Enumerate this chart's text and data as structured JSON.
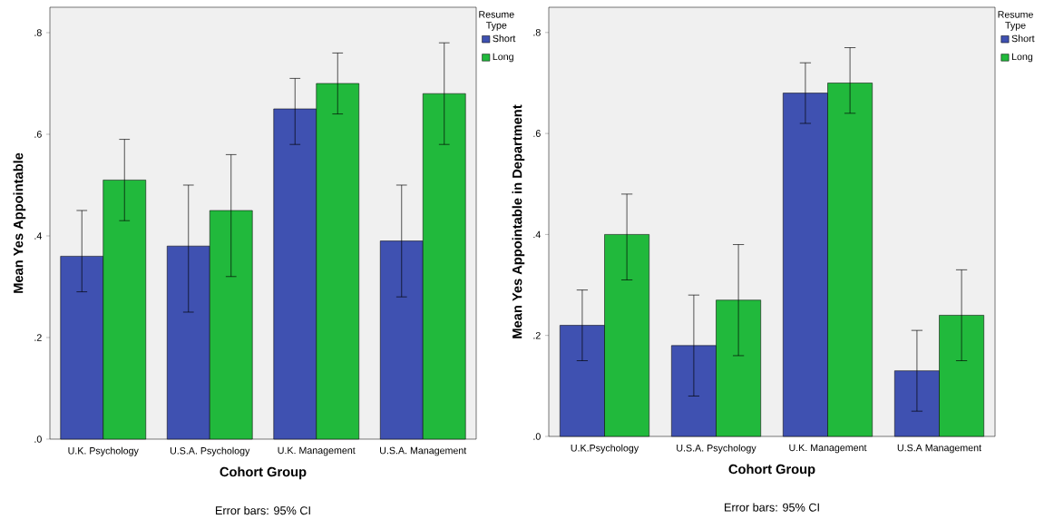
{
  "chart_data": [
    {
      "type": "bar",
      "xlabel": "Cohort Group",
      "ylabel": "Mean Yes Appointable",
      "legend_title": "Resume Type",
      "legend": "top right",
      "categories": [
        "U.K. Psychology",
        "U.S.A. Psychology",
        "U.K. Management",
        "U.S.A. Management"
      ],
      "series": [
        {
          "name": "Short",
          "color": "#3f51b1",
          "values": [
            0.36,
            0.38,
            0.65,
            0.39
          ],
          "errors": [
            [
              0.29,
              0.45
            ],
            [
              0.25,
              0.5
            ],
            [
              0.58,
              0.71
            ],
            [
              0.28,
              0.5
            ]
          ]
        },
        {
          "name": "Long",
          "color": "#21b93c",
          "values": [
            0.51,
            0.45,
            0.7,
            0.68
          ],
          "errors": [
            [
              0.43,
              0.59
            ],
            [
              0.32,
              0.56
            ],
            [
              0.64,
              0.76
            ],
            [
              0.58,
              0.78
            ]
          ]
        }
      ],
      "ylim": [
        0,
        0.85
      ],
      "yticks": [
        {
          "value": 0,
          "label": ".0"
        },
        {
          "value": 0.2,
          "label": ".2"
        },
        {
          "value": 0.4,
          "label": ".4"
        },
        {
          "value": 0.6,
          "label": ".6"
        },
        {
          "value": 0.8,
          "label": ".8"
        }
      ],
      "annotations": [
        "Error bars: 95% CI"
      ]
    },
    {
      "type": "bar",
      "xlabel": "Cohort Group",
      "ylabel": "Mean Yes Appointable in Department",
      "legend_title": "Resume Type",
      "legend": "top right",
      "categories": [
        "U.K.Psychology",
        "U.S.A. Psychology",
        "U.K. Management",
        "U.S.A Management"
      ],
      "series": [
        {
          "name": "Short",
          "color": "#3f51b1",
          "values": [
            0.22,
            0.18,
            0.68,
            0.13
          ],
          "errors": [
            [
              0.15,
              0.29
            ],
            [
              0.08,
              0.28
            ],
            [
              0.62,
              0.74
            ],
            [
              0.05,
              0.21
            ]
          ]
        },
        {
          "name": "Long",
          "color": "#21b93c",
          "values": [
            0.4,
            0.27,
            0.7,
            0.24
          ],
          "errors": [
            [
              0.31,
              0.48
            ],
            [
              0.16,
              0.38
            ],
            [
              0.64,
              0.77
            ],
            [
              0.15,
              0.33
            ]
          ]
        }
      ],
      "ylim": [
        0,
        0.85
      ],
      "yticks": [
        {
          "value": 0,
          "label": ".0"
        },
        {
          "value": 0.2,
          "label": ".2"
        },
        {
          "value": 0.4,
          "label": ".4"
        },
        {
          "value": 0.6,
          "label": ".6"
        },
        {
          "value": 0.8,
          "label": ".8"
        }
      ],
      "annotations": [
        "Error bars: 95% CI"
      ]
    }
  ]
}
